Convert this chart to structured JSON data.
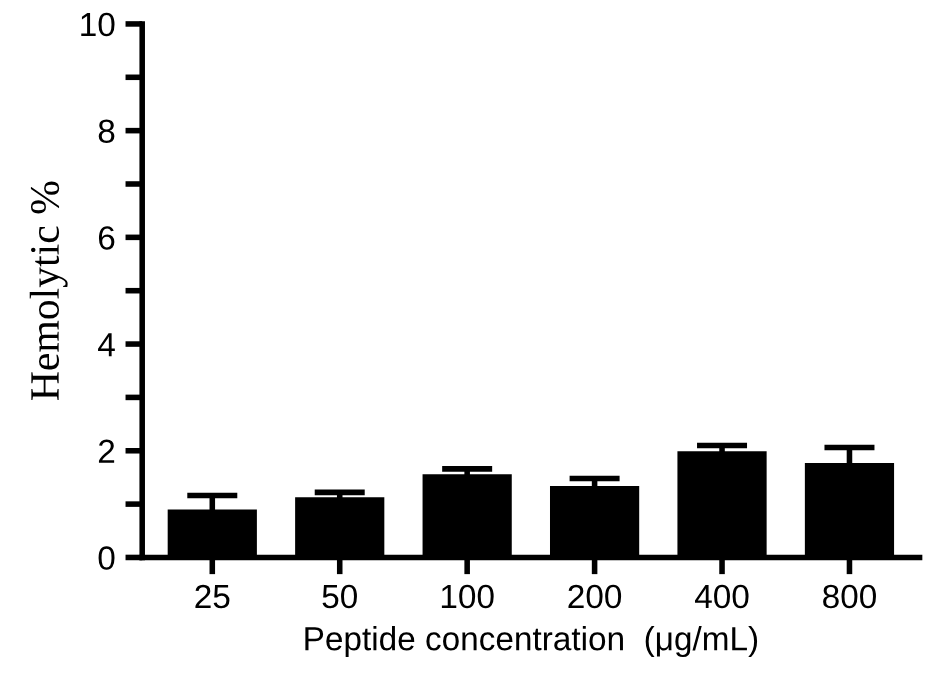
{
  "chart_data": {
    "type": "bar",
    "xlabel": "Peptide concentration  (μg/mL)",
    "ylabel": "Hemolytic %",
    "categories": [
      "25",
      "50",
      "100",
      "200",
      "400",
      "800"
    ],
    "values": [
      0.9,
      1.13,
      1.56,
      1.34,
      1.99,
      1.77
    ],
    "errors": [
      0.26,
      0.09,
      0.1,
      0.14,
      0.11,
      0.29
    ],
    "color": "#000000",
    "ylim": [
      0,
      10
    ],
    "yticks": [
      0,
      {
        "value": 1,
        "label": null
      },
      2,
      {
        "value": 3,
        "label": null
      },
      4,
      {
        "value": 5,
        "label": null
      },
      6,
      {
        "value": 7,
        "label": null
      },
      8,
      {
        "value": 9,
        "label": null
      },
      10
    ],
    "grid": false,
    "legend": false
  }
}
